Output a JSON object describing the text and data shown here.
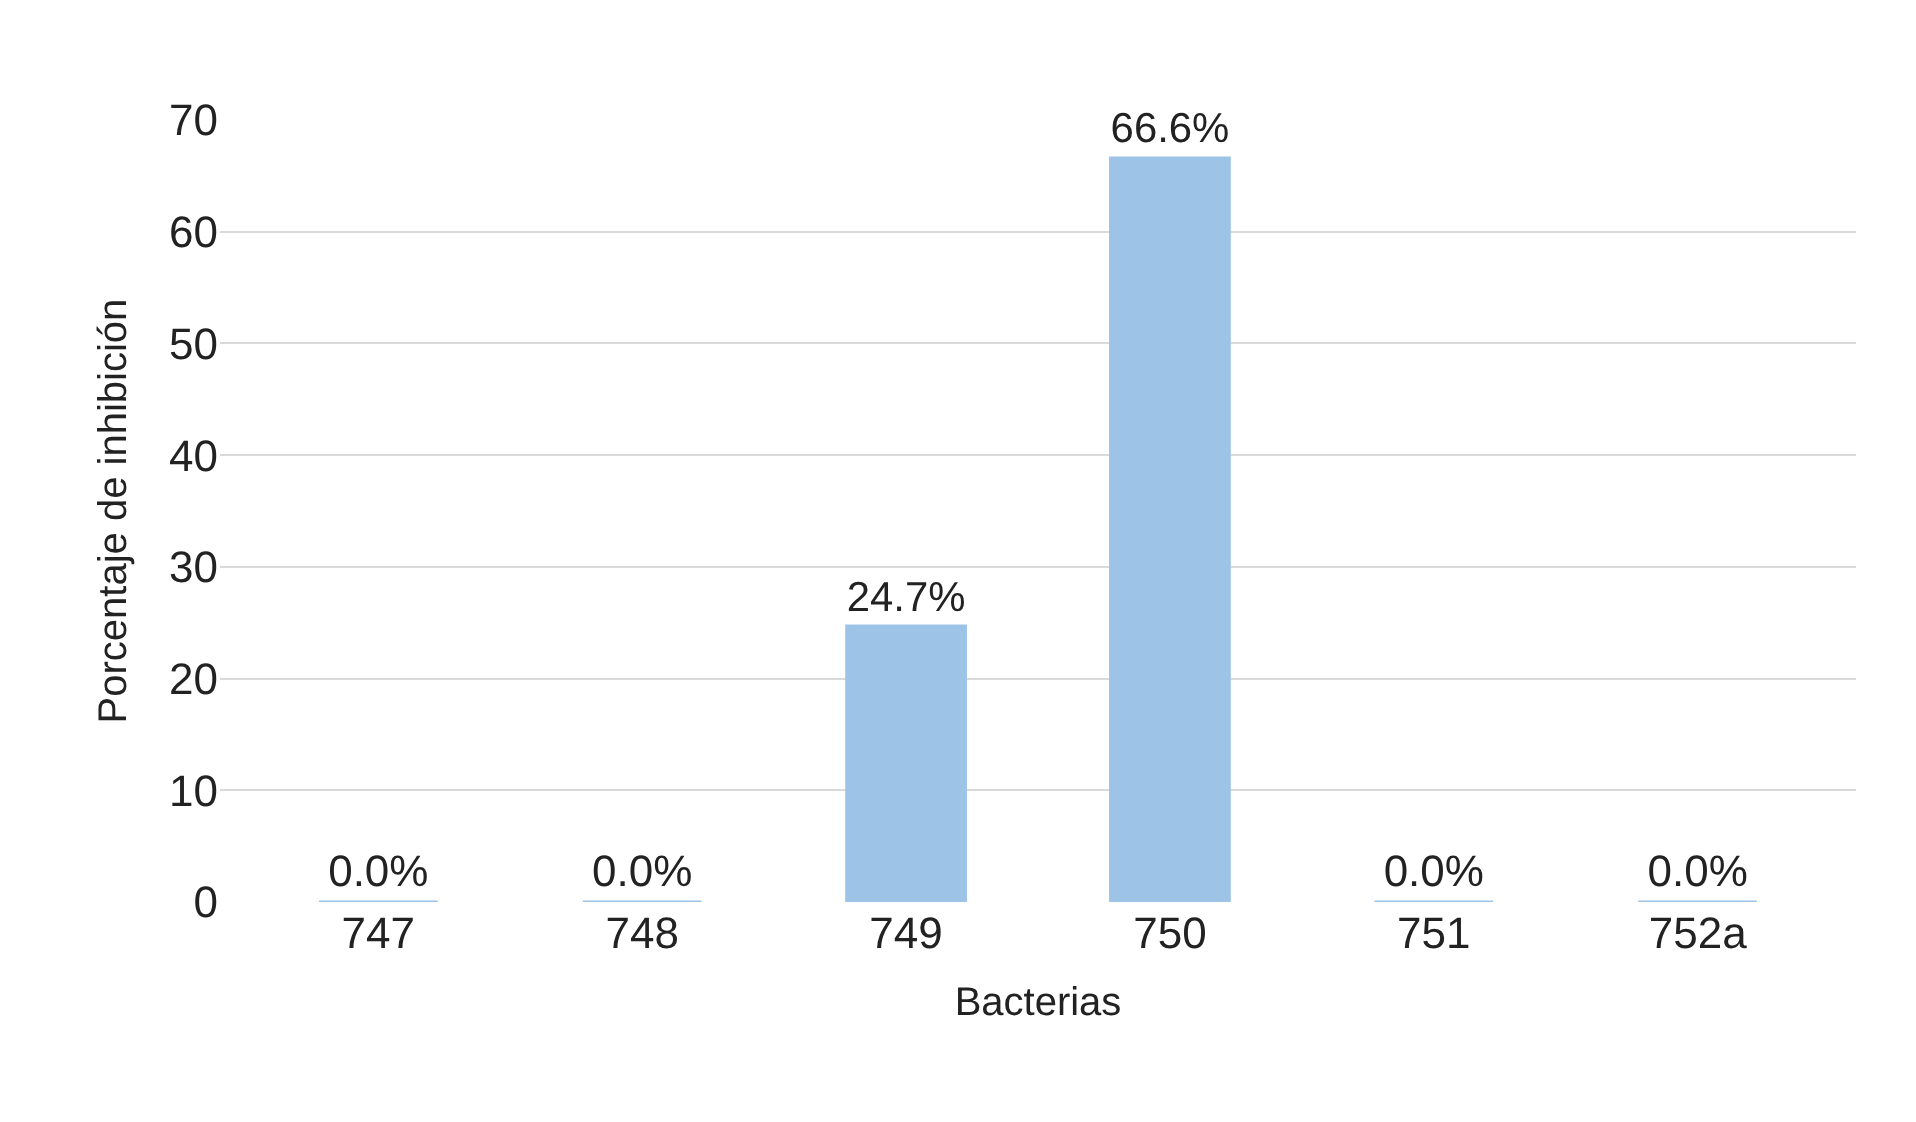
{
  "chart_data": {
    "type": "bar",
    "xlabel": "Bacterias",
    "ylabel": "Porcentaje de inhibición",
    "categories": [
      "747",
      "748",
      "749",
      "750",
      "751",
      "752a"
    ],
    "values": [
      0,
      0,
      24.7,
      66.6,
      0,
      0
    ],
    "value_labels": [
      "0.0%",
      "0.0%",
      "24.7%",
      "66.6%",
      "0.0%",
      "0.0%"
    ],
    "color": "#9dc3e6",
    "ylim": [
      0,
      70
    ],
    "yticks": [
      0,
      10,
      20,
      30,
      40,
      50,
      60,
      70
    ],
    "grid": "y"
  }
}
